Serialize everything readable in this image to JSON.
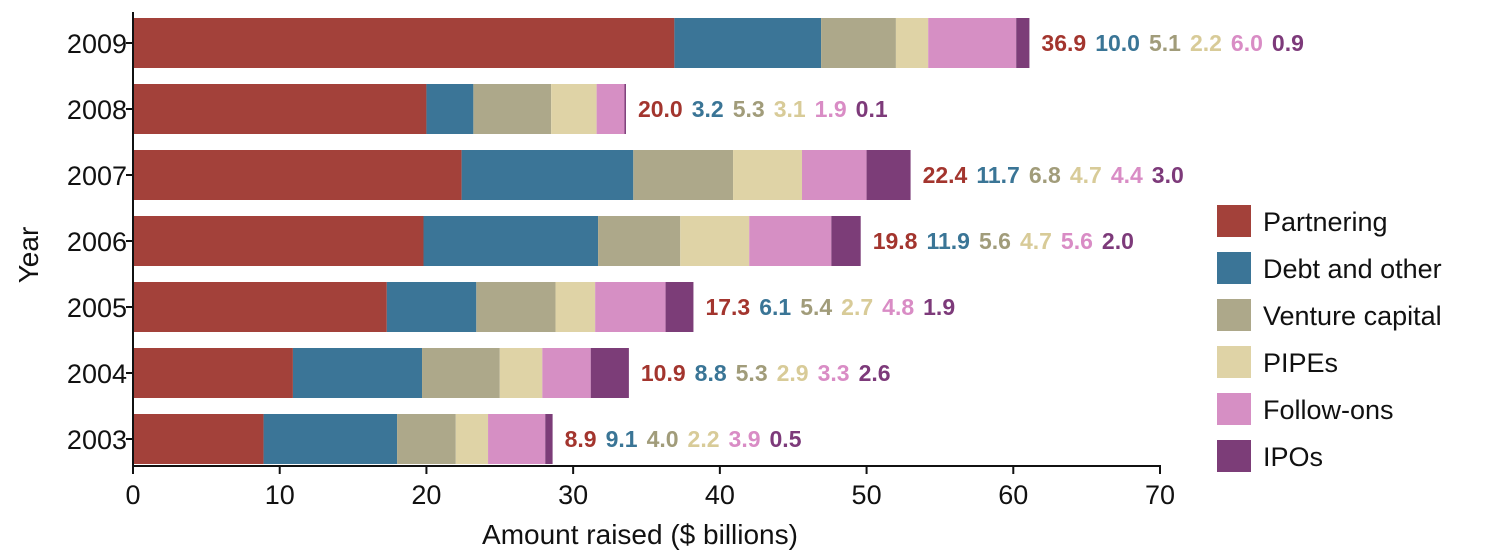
{
  "chart_data": {
    "type": "bar",
    "orientation": "horizontal",
    "stacked": true,
    "categories": [
      "2009",
      "2008",
      "2007",
      "2006",
      "2005",
      "2004",
      "2003"
    ],
    "series": [
      {
        "name": "Partnering",
        "color": "#a3413a",
        "label_color": "#a3352e",
        "values": [
          36.9,
          20.0,
          22.4,
          19.8,
          17.3,
          10.9,
          8.9
        ]
      },
      {
        "name": "Debt and other",
        "color": "#3b7597",
        "label_color": "#3a7596",
        "values": [
          10.0,
          3.2,
          11.7,
          11.9,
          6.1,
          8.8,
          9.1
        ]
      },
      {
        "name": "Venture capital",
        "color": "#ada88a",
        "label_color": "#a19c7a",
        "values": [
          5.1,
          5.3,
          6.8,
          5.6,
          5.4,
          5.3,
          4.0
        ]
      },
      {
        "name": "PIPEs",
        "color": "#dfd3a6",
        "label_color": "#d8cb98",
        "values": [
          2.2,
          3.1,
          4.7,
          4.7,
          2.7,
          2.9,
          2.2
        ]
      },
      {
        "name": "Follow-ons",
        "color": "#d68fc4",
        "label_color": "#d98cc5",
        "values": [
          6.0,
          1.9,
          4.4,
          5.6,
          4.8,
          3.3,
          3.9
        ]
      },
      {
        "name": "IPOs",
        "color": "#7c3d78",
        "label_color": "#7d3a7a",
        "values": [
          0.9,
          0.1,
          3.0,
          2.0,
          1.9,
          2.6,
          0.5
        ]
      }
    ],
    "data_labels": [
      [
        "36.9",
        "10.0",
        "5.1",
        "2.2",
        "6.0",
        "0.9"
      ],
      [
        "20.0",
        "3.2",
        "5.3",
        "3.1",
        "1.9",
        "0.1"
      ],
      [
        "22.4",
        "11.7",
        "6.8",
        "4.7",
        "4.4",
        "3.0"
      ],
      [
        "19.8",
        "11.9",
        "5.6",
        "4.7",
        "5.6",
        "2.0"
      ],
      [
        "17.3",
        "6.1",
        "5.4",
        "2.7",
        "4.8",
        "1.9"
      ],
      [
        "10.9",
        "8.8",
        "5.3",
        "2.9",
        "3.3",
        "2.6"
      ],
      [
        "8.9",
        "9.1",
        "4.0",
        "2.2",
        "3.9",
        "0.5"
      ]
    ],
    "xlabel": "Amount raised ($ billions)",
    "ylabel": "Year",
    "xlim": [
      0,
      70
    ],
    "xticks": [
      "0",
      "10",
      "20",
      "30",
      "40",
      "50",
      "60",
      "70"
    ],
    "grid": false,
    "legend_position": "right"
  }
}
